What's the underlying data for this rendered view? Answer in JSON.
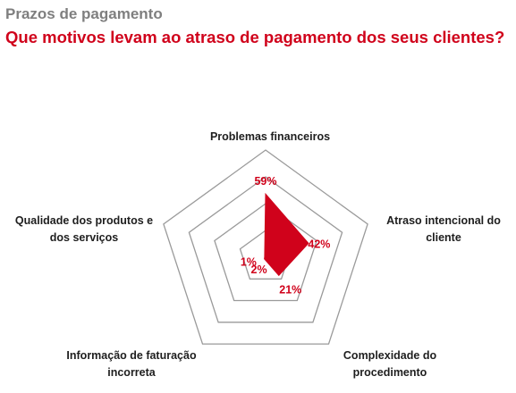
{
  "header": {
    "eyebrow": "Prazos de pagamento",
    "title": "Que motivos levam ao atraso de pagamento dos seus clientes?"
  },
  "colors": {
    "accent": "#d0021b",
    "grid": "#9a9a9a",
    "text": "#1e1e1e",
    "eyebrow": "#7f7f7f"
  },
  "chart_data": {
    "type": "radar",
    "title": "Que motivos levam ao atraso de pagamento dos seus clientes?",
    "categories": [
      [
        "Problemas financeiros"
      ],
      [
        "Atraso intencional do",
        "cliente"
      ],
      [
        "Complexidade do",
        "procedimento"
      ],
      [
        "Informação de faturação",
        "incorreta"
      ],
      [
        "Qualidade dos produtos e",
        "dos serviços"
      ]
    ],
    "values": [
      59,
      42,
      21,
      2,
      1
    ],
    "value_labels": [
      "59%",
      "42%",
      "21%",
      "2%",
      "1%"
    ],
    "rlim": [
      0,
      100
    ],
    "grid_rings": 4,
    "legend": "none"
  }
}
